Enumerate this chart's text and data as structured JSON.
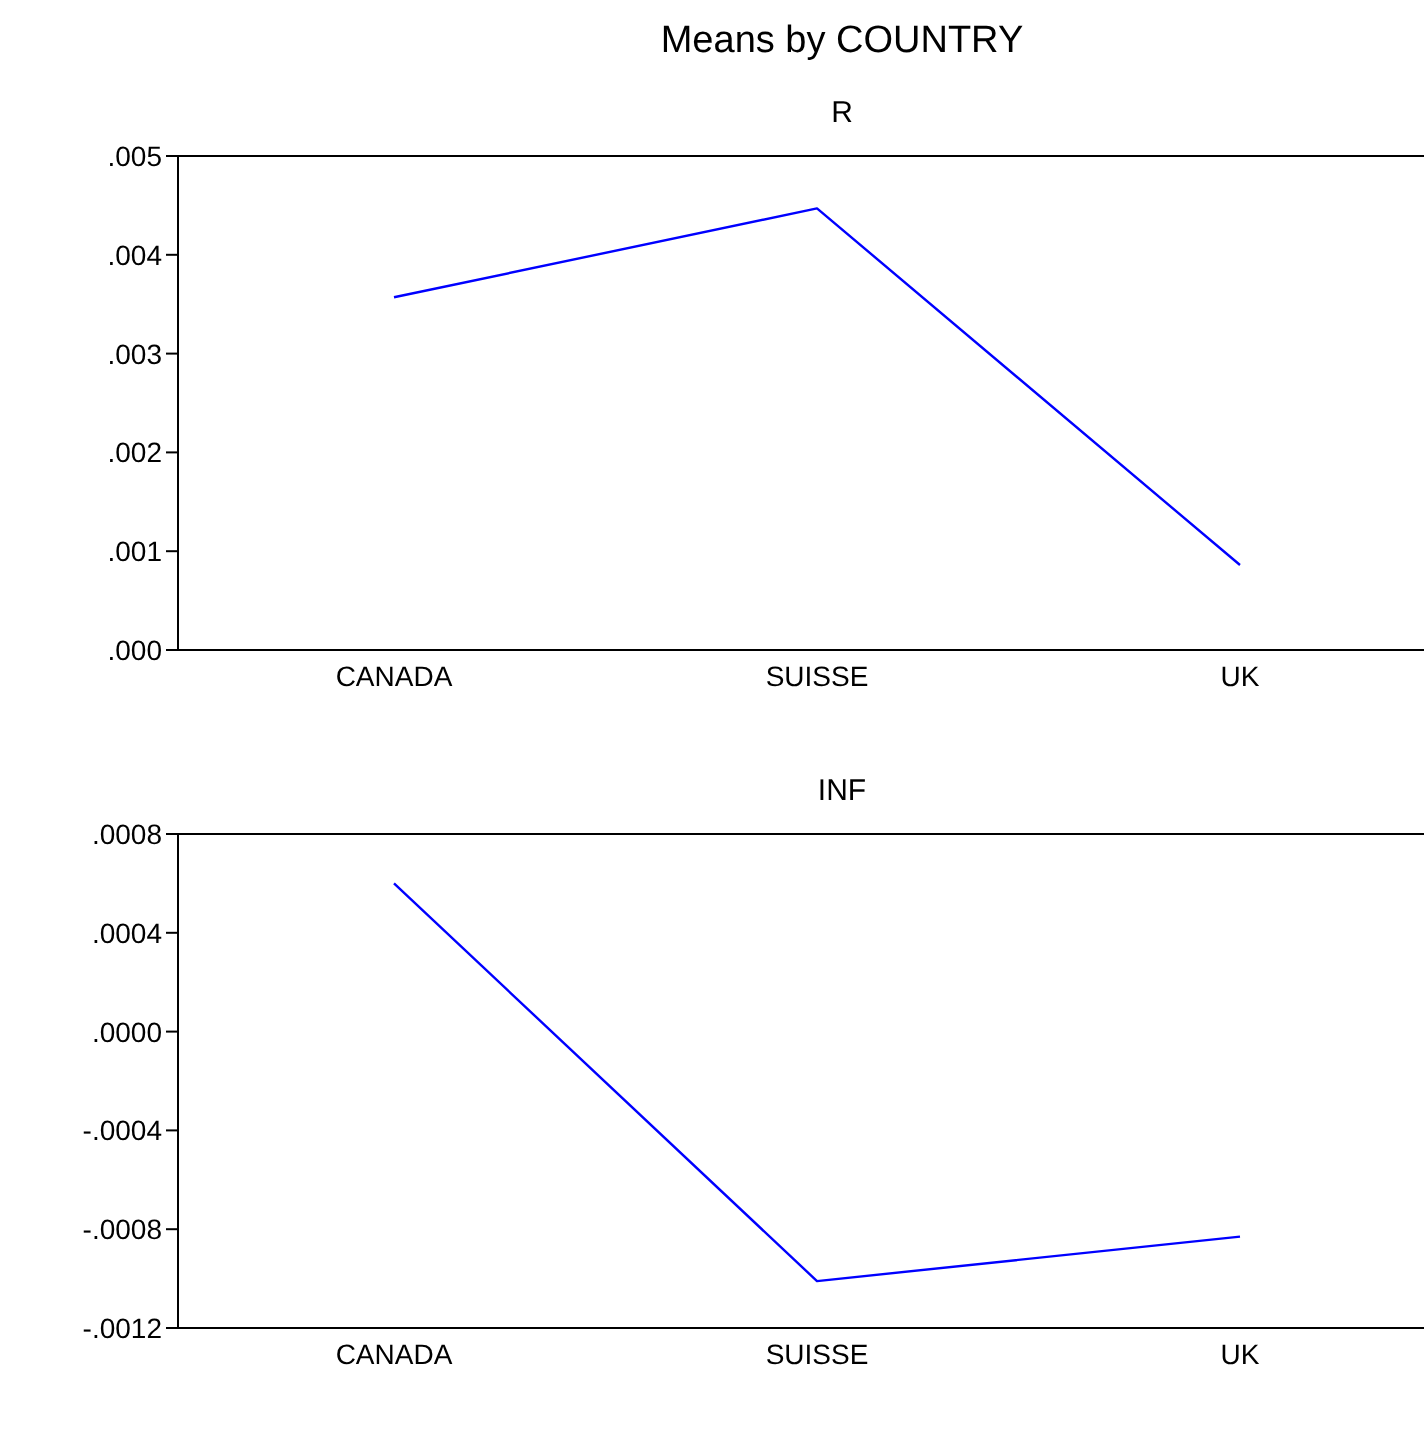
{
  "chart_data": [
    {
      "type": "line",
      "title": "Means by COUNTRY",
      "subtitle": "R",
      "categories": [
        "CANADA",
        "SUISSE",
        "UK"
      ],
      "series": [
        {
          "color": "#0000ff",
          "values": [
            0.00357,
            0.00447,
            0.00086
          ]
        }
      ],
      "ylim": [
        0,
        0.005
      ],
      "yticks": [
        {
          "value": 0,
          "label": ".000"
        },
        {
          "value": 0.001,
          "label": ".001"
        },
        {
          "value": 0.002,
          "label": ".002"
        },
        {
          "value": 0.003,
          "label": ".003"
        },
        {
          "value": 0.004,
          "label": ".004"
        },
        {
          "value": 0.005,
          "label": ".005"
        }
      ],
      "marker": "none",
      "grid": false,
      "legend": false
    },
    {
      "type": "line",
      "title": "INF",
      "categories": [
        "CANADA",
        "SUISSE",
        "UK"
      ],
      "series": [
        {
          "color": "#0000ff",
          "values": [
            0.0006,
            -0.00101,
            -0.00083
          ]
        }
      ],
      "ylim": [
        -0.0012,
        0.0008
      ],
      "yticks": [
        {
          "value": -0.0012,
          "label": "-.0012"
        },
        {
          "value": -0.0008,
          "label": "-.0008"
        },
        {
          "value": -0.0004,
          "label": "-.0004"
        },
        {
          "value": 0,
          "label": ".0000"
        },
        {
          "value": 0.0004,
          "label": ".0004"
        },
        {
          "value": 0.0008,
          "label": ".0008"
        }
      ],
      "marker": "none",
      "grid": false,
      "legend": false
    }
  ]
}
